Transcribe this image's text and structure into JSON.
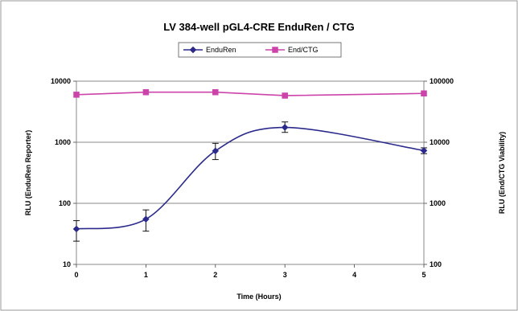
{
  "chart_data": {
    "type": "line",
    "title": "LV 384-well pGL4-CRE EnduRen / CTG",
    "xlabel": "Time (Hours)",
    "ylabel": "RLU (EnduRen Reporter)",
    "y2label": "RLU (End/CTG Viability)",
    "x": [
      0,
      1,
      2,
      3,
      5
    ],
    "xlim": [
      0,
      5
    ],
    "xticks": [
      "0",
      "1",
      "2",
      "3",
      "4",
      "5"
    ],
    "ylim": [
      10,
      10000
    ],
    "yscale": "log",
    "yticks": [
      "10",
      "100",
      "1000",
      "10000"
    ],
    "y2lim": [
      100,
      100000
    ],
    "y2scale": "log",
    "y2ticks": [
      "100",
      "1000",
      "10000",
      "100000"
    ],
    "grid": "horizontal",
    "legend_position": "top-center",
    "series": [
      {
        "name": "EnduRen",
        "axis": "left",
        "color": "#2b2a8c",
        "marker": "diamond",
        "smooth": true,
        "values": [
          38,
          55,
          720,
          1750,
          730
        ],
        "error_low": [
          24,
          35,
          520,
          1450,
          650
        ],
        "error_high": [
          52,
          78,
          960,
          2150,
          810
        ]
      },
      {
        "name": "End/CTG",
        "axis": "right",
        "color": "#cc44aa",
        "marker": "square",
        "smooth": false,
        "values": [
          60000,
          66000,
          66000,
          58000,
          63000
        ]
      }
    ]
  }
}
